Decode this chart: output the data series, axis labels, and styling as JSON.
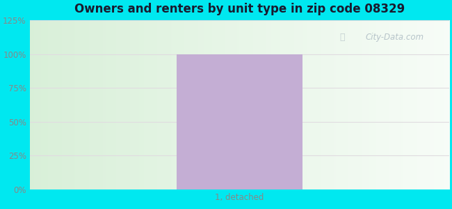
{
  "title": "Owners and renters by unit type in zip code 08329",
  "categories": [
    "1, detached"
  ],
  "values": [
    100
  ],
  "bar_color": "#c4aed4",
  "ylim": [
    0,
    125
  ],
  "yticks": [
    0,
    25,
    50,
    75,
    100,
    125
  ],
  "ytick_labels": [
    "0%",
    "25%",
    "50%",
    "75%",
    "100%",
    "125%"
  ],
  "outer_bg_color": "#00e8f0",
  "title_fontsize": 12,
  "title_color": "#1a1a2e",
  "watermark_text": "City-Data.com",
  "watermark_color": "#b0bec5",
  "bar_width": 0.45,
  "grid_color": "#e8e8e8",
  "tick_label_color": "#888888"
}
